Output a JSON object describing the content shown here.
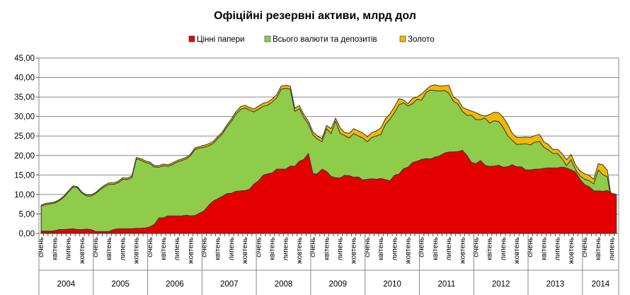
{
  "chart_data": {
    "type": "area",
    "stacked": true,
    "title": "Офіційні резервні активи, млрд дол",
    "xlabel": "",
    "ylabel": "",
    "ylim": [
      0,
      45
    ],
    "y_ticks": [
      "0,00",
      "5,00",
      "10,00",
      "15,00",
      "20,00",
      "25,00",
      "30,00",
      "35,00",
      "40,00",
      "45,00"
    ],
    "grid": true,
    "legend_position": "top",
    "months_per_year": 12,
    "month_tick_labels": [
      "січень",
      "квітень",
      "липень",
      "жовтень"
    ],
    "years": [
      "2004",
      "2005",
      "2006",
      "2007",
      "2008",
      "2009",
      "2010",
      "2011",
      "2012",
      "2013",
      "2014"
    ],
    "colors": {
      "securities": "#e50000",
      "currency": "#8fcc4a",
      "gold": "#f2b800",
      "outline": "#333333"
    },
    "series": [
      {
        "name": "Цінні папери",
        "key": "securities",
        "values": [
          0.6,
          0.6,
          0.6,
          0.7,
          1.0,
          1.0,
          1.1,
          1.2,
          1.0,
          1.0,
          1.1,
          1.0,
          0.5,
          0.5,
          0.5,
          0.5,
          1.0,
          1.2,
          1.2,
          1.2,
          1.2,
          1.3,
          1.3,
          1.4,
          1.7,
          2.3,
          4.0,
          4.0,
          4.5,
          4.5,
          4.5,
          4.5,
          4.7,
          4.5,
          4.6,
          5.2,
          5.8,
          7.2,
          8.3,
          8.9,
          9.5,
          10.2,
          10.3,
          10.8,
          10.9,
          11.0,
          11.3,
          12.7,
          13.5,
          14.9,
          15.3,
          15.5,
          16.5,
          16.5,
          16.5,
          17.3,
          17.2,
          18.5,
          19.0,
          20.5,
          15.3,
          15.3,
          16.5,
          15.9,
          14.6,
          14.3,
          14.2,
          14.9,
          14.8,
          14.4,
          14.5,
          13.7,
          13.9,
          14.0,
          13.9,
          14.1,
          13.8,
          13.5,
          14.9,
          15.2,
          16.6,
          17.0,
          18.2,
          18.5,
          19.0,
          19.2,
          19.1,
          19.6,
          19.9,
          20.6,
          20.9,
          20.9,
          21.0,
          21.3,
          20.0,
          18.2,
          17.9,
          18.7,
          17.5,
          17.2,
          17.3,
          17.5,
          17.0,
          17.1,
          17.6,
          17.1,
          17.1,
          16.3,
          16.3,
          16.5,
          16.5,
          16.7,
          16.8,
          16.8,
          16.8,
          17.0,
          16.8,
          16.3,
          15.7,
          13.8,
          12.5,
          12.0,
          10.9,
          10.9,
          10.8,
          11.0,
          10.3,
          10.0
        ],
        "note": "values are the top of the red band (cumulative, млрд дол)"
      },
      {
        "name": "Всього валюти та депозитів",
        "key": "currency",
        "values": [
          7.0,
          7.4,
          7.6,
          7.8,
          8.4,
          9.3,
          10.6,
          11.9,
          11.7,
          10.3,
          9.6,
          9.6,
          10.2,
          11.2,
          12.0,
          12.6,
          12.6,
          13.0,
          13.9,
          13.8,
          14.3,
          19.1,
          18.8,
          18.2,
          17.9,
          17.0,
          17.0,
          17.4,
          17.2,
          17.7,
          18.3,
          18.7,
          19.1,
          20.0,
          21.6,
          21.9,
          22.1,
          22.5,
          23.1,
          24.4,
          25.5,
          27.3,
          28.8,
          30.6,
          31.8,
          32.2,
          31.6,
          31.2,
          31.9,
          32.6,
          32.9,
          33.7,
          34.8,
          37.0,
          37.2,
          37.0,
          31.3,
          32.0,
          29.7,
          28.0,
          25.3,
          24.2,
          23.5,
          26.9,
          25.6,
          28.8,
          25.7,
          25.1,
          24.5,
          25.6,
          25.0,
          24.5,
          23.5,
          24.6,
          25.0,
          25.4,
          28.0,
          29.3,
          31.0,
          33.0,
          33.5,
          32.7,
          33.3,
          34.4,
          34.2,
          36.2,
          36.8,
          36.6,
          36.5,
          36.7,
          36.0,
          33.9,
          33.2,
          31.3,
          30.3,
          30.3,
          29.2,
          29.2,
          29.6,
          28.3,
          28.9,
          28.7,
          27.2,
          25.1,
          23.9,
          22.8,
          22.9,
          23.0,
          22.7,
          23.4,
          23.6,
          22.1,
          21.4,
          20.5,
          20.5,
          19.2,
          17.4,
          18.9,
          16.3,
          14.7,
          13.9,
          13.5,
          12.7,
          16.3,
          15.1,
          14.5
        ],
        "note": "values are the top of the green band (cumulative, млрд дол)"
      },
      {
        "name": "Золото",
        "key": "gold",
        "values": [
          7.3,
          7.7,
          7.9,
          8.1,
          8.7,
          9.6,
          10.9,
          12.2,
          12.0,
          10.6,
          9.9,
          9.9,
          10.5,
          11.5,
          12.4,
          13.0,
          13.0,
          13.4,
          14.3,
          14.2,
          14.7,
          19.5,
          19.2,
          18.6,
          18.3,
          17.4,
          17.4,
          17.8,
          17.6,
          18.1,
          18.7,
          19.1,
          19.5,
          20.4,
          22.0,
          22.3,
          22.6,
          23.0,
          23.6,
          24.9,
          26.0,
          27.8,
          29.4,
          31.2,
          32.5,
          32.9,
          32.3,
          31.9,
          32.7,
          33.4,
          33.7,
          34.5,
          35.6,
          37.8,
          38.0,
          37.8,
          32.1,
          32.8,
          30.5,
          28.8,
          26.1,
          25.0,
          24.3,
          27.7,
          26.9,
          29.6,
          27.1,
          25.9,
          25.7,
          26.9,
          26.3,
          25.8,
          24.8,
          25.9,
          26.3,
          27.1,
          29.4,
          30.7,
          32.5,
          34.6,
          34.2,
          33.3,
          34.7,
          35.0,
          35.8,
          36.9,
          37.9,
          38.1,
          37.8,
          37.9,
          38.0,
          35.0,
          34.3,
          32.4,
          31.8,
          31.4,
          31.0,
          30.4,
          30.1,
          30.5,
          31.1,
          31.0,
          29.8,
          28.0,
          25.7,
          24.6,
          24.6,
          24.7,
          24.6,
          25.1,
          25.4,
          23.5,
          22.8,
          21.5,
          21.6,
          20.5,
          18.9,
          20.3,
          17.5,
          16.0,
          15.3,
          14.9,
          13.9,
          17.9,
          17.6,
          16.2
        ],
        "note": "values are the top of the yellow band (cumulative total reserves, млрд дол)"
      }
    ]
  }
}
